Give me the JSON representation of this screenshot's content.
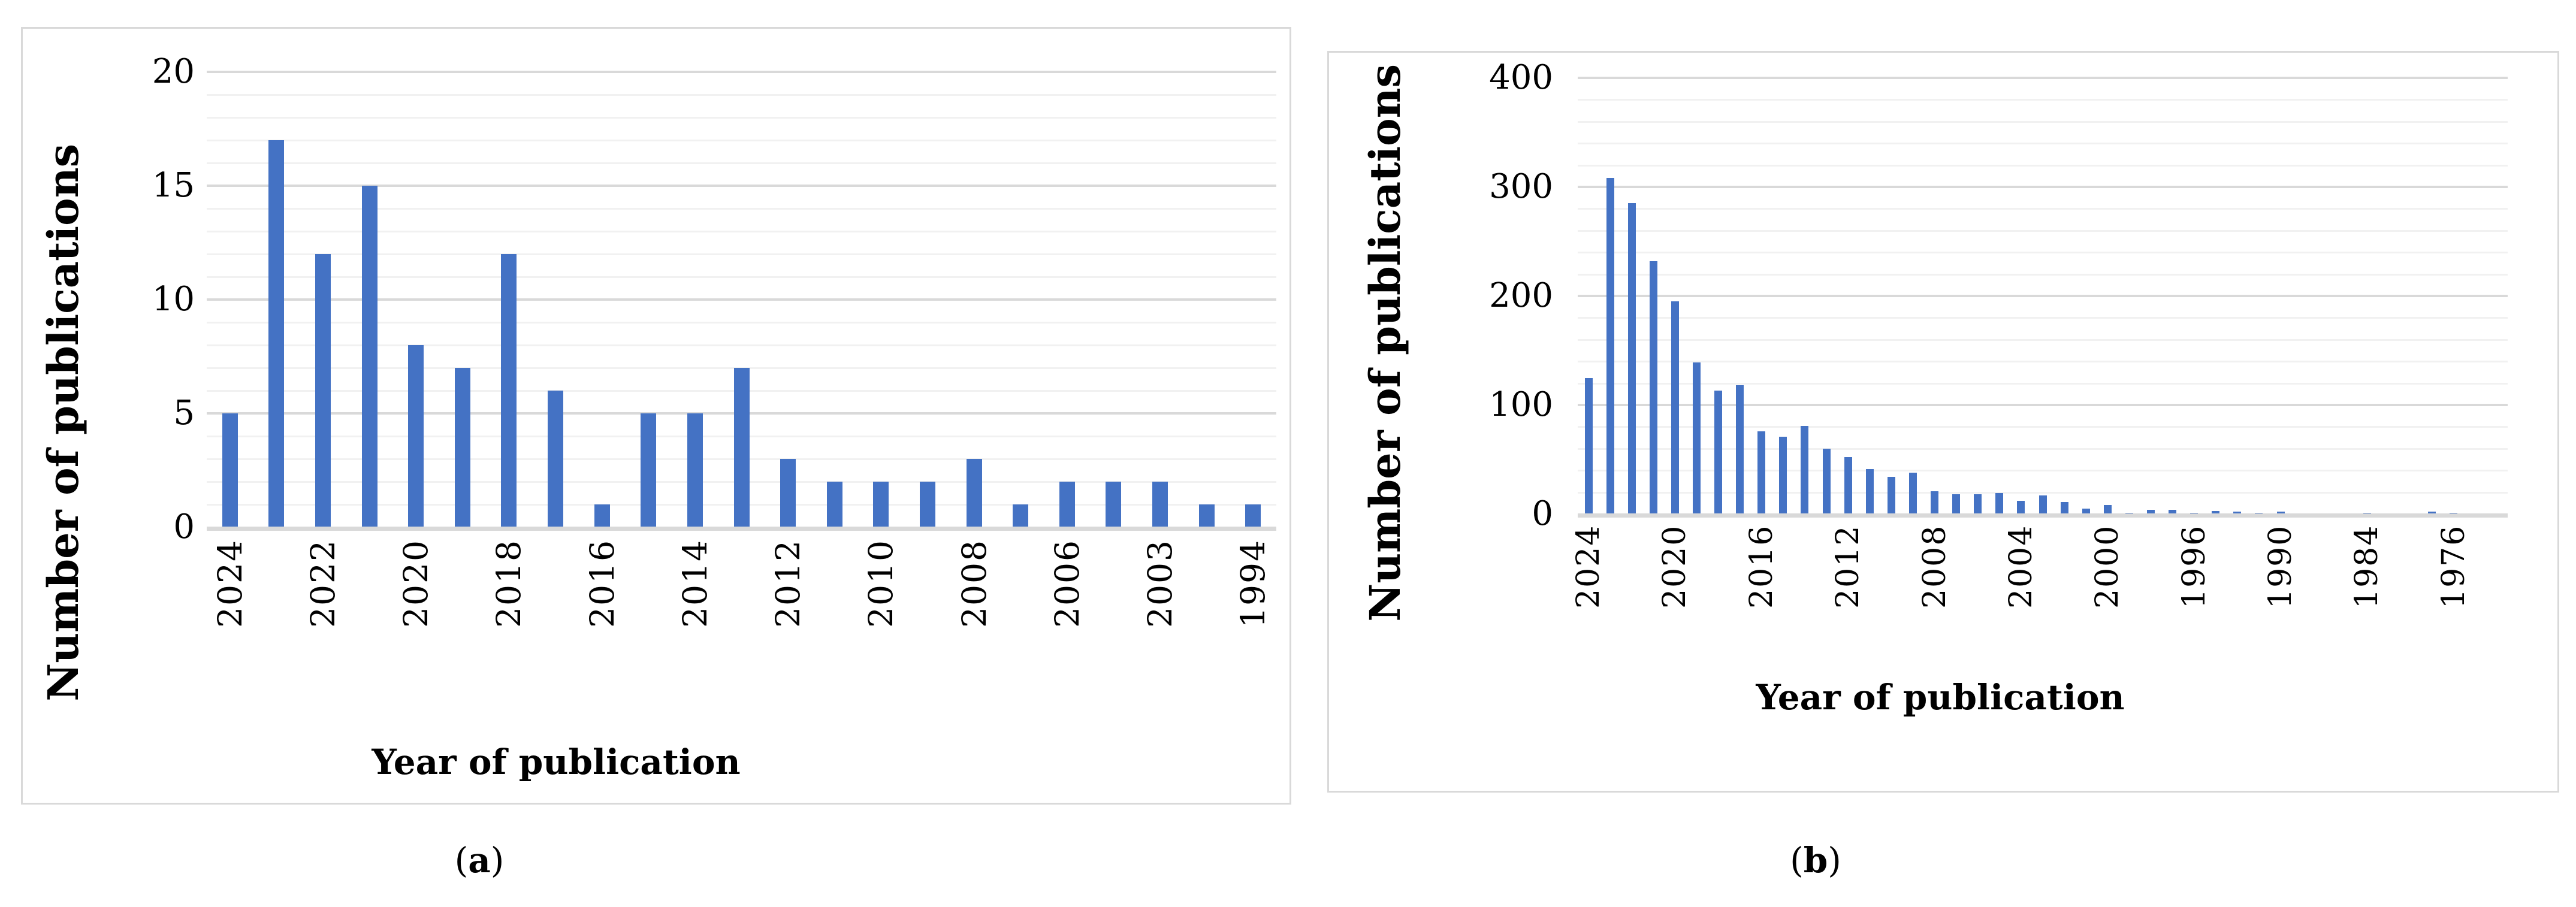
{
  "figure": {
    "panels": [
      {
        "caption_open": "(",
        "caption_letter": "a",
        "caption_close": ")"
      },
      {
        "caption_open": "(",
        "caption_letter": "b",
        "caption_close": ")"
      }
    ]
  },
  "colors": {
    "bar": "#4472C4",
    "gridline_minor": "#F1F1F1",
    "gridline_major": "#D9D9D9",
    "axis_line": "#D9D9D9",
    "box_border": "#D9D9D9",
    "text": "#000000",
    "background": "#FFFFFF"
  },
  "chart_data": [
    {
      "type": "bar",
      "panel": "a",
      "title": "",
      "xlabel": "Year of publication",
      "ylabel": "Number of publications",
      "ylim": [
        0,
        20
      ],
      "ytick_interval": 5,
      "yminor_interval": 1,
      "ytick_labels": [
        "0",
        "5",
        "10",
        "15",
        "20"
      ],
      "grid": true,
      "legend": "none",
      "categories": [
        "2024",
        "",
        "2022",
        "",
        "2020",
        "",
        "2018",
        "",
        "2016",
        "",
        "2014",
        "",
        "2012",
        "",
        "2010",
        "",
        "2008",
        "",
        "2006",
        "",
        "2003",
        "",
        "1994"
      ],
      "values": [
        5,
        17,
        12,
        15,
        8,
        7,
        12,
        6,
        1,
        5,
        5,
        7,
        3,
        2,
        2,
        2,
        3,
        1,
        2,
        2,
        2,
        1,
        1
      ]
    },
    {
      "type": "bar",
      "panel": "b",
      "title": "",
      "xlabel": "Year of publication",
      "ylabel": "Number of publications",
      "ylim": [
        0,
        400
      ],
      "ytick_interval": 100,
      "yminor_interval": 20,
      "ytick_labels": [
        "0",
        "100",
        "200",
        "300",
        "400"
      ],
      "grid": true,
      "legend": "none",
      "categories": [
        "2024",
        "",
        "",
        "",
        "2020",
        "",
        "",
        "",
        "2016",
        "",
        "",
        "",
        "2012",
        "",
        "",
        "",
        "2008",
        "",
        "",
        "",
        "2004",
        "",
        "",
        "",
        "2000",
        "",
        "",
        "",
        "1996",
        "",
        "",
        "",
        "1990",
        "",
        "",
        "",
        "1984",
        "",
        "",
        "",
        "1976",
        "",
        ""
      ],
      "values": [
        125,
        308,
        285,
        232,
        195,
        139,
        113,
        118,
        76,
        71,
        81,
        60,
        52,
        41,
        34,
        38,
        21,
        18,
        18,
        19,
        12,
        17,
        11,
        5,
        8,
        1,
        4,
        4,
        1,
        3,
        2,
        1,
        2,
        0,
        0,
        0,
        1,
        0,
        0,
        2,
        1,
        0,
        0
      ]
    }
  ]
}
